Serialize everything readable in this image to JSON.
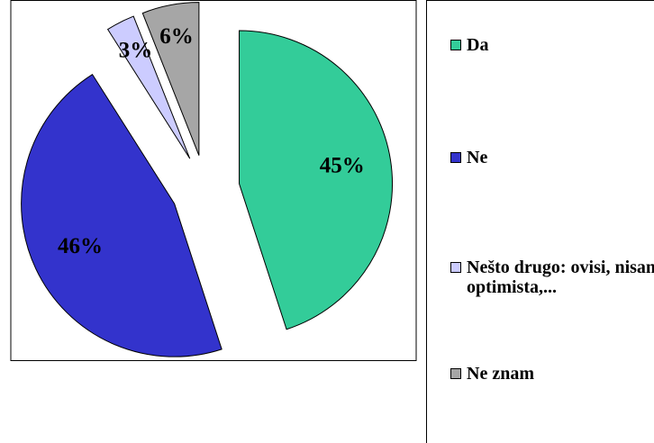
{
  "chart_data": {
    "type": "pie",
    "categories": [
      "Da",
      "Ne",
      "Nešto drugo: ovisi, nisam optimista,...",
      "Ne znam"
    ],
    "values": [
      45,
      46,
      3,
      6
    ],
    "value_labels": [
      "45%",
      "46%",
      "3%",
      "6%"
    ],
    "colors": [
      "#33cc99",
      "#3333cc",
      "#ccccff",
      "#a6a6a6"
    ],
    "legend": "right"
  }
}
